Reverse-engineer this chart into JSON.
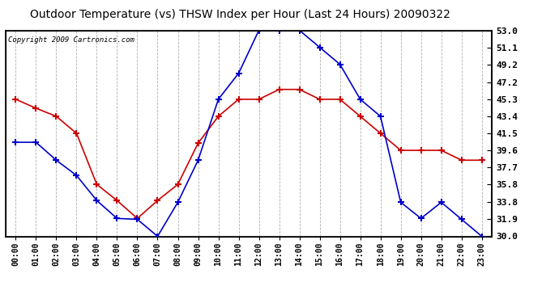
{
  "title": "Outdoor Temperature (vs) THSW Index per Hour (Last 24 Hours) 20090322",
  "copyright": "Copyright 2009 Cartronics.com",
  "hours": [
    "00:00",
    "01:00",
    "02:00",
    "03:00",
    "04:00",
    "05:00",
    "06:00",
    "07:00",
    "08:00",
    "09:00",
    "10:00",
    "11:00",
    "12:00",
    "13:00",
    "14:00",
    "15:00",
    "16:00",
    "17:00",
    "18:00",
    "19:00",
    "20:00",
    "21:00",
    "22:00",
    "23:00"
  ],
  "temp": [
    45.3,
    44.3,
    43.4,
    41.5,
    35.8,
    34.0,
    32.0,
    34.0,
    35.8,
    40.4,
    43.4,
    45.3,
    45.3,
    46.4,
    46.4,
    45.3,
    45.3,
    43.4,
    41.5,
    39.6,
    39.6,
    39.6,
    38.5,
    38.5
  ],
  "thsw": [
    40.5,
    40.5,
    38.5,
    36.8,
    34.0,
    32.0,
    31.9,
    30.0,
    33.8,
    38.5,
    45.3,
    48.2,
    53.0,
    53.0,
    53.0,
    51.1,
    49.2,
    45.3,
    43.4,
    33.8,
    32.0,
    33.8,
    31.9,
    30.0
  ],
  "temp_color": "#cc0000",
  "thsw_color": "#0000cc",
  "ylim_min": 30.0,
  "ylim_max": 53.0,
  "yticks": [
    30.0,
    31.9,
    33.8,
    35.8,
    37.7,
    39.6,
    41.5,
    43.4,
    45.3,
    47.2,
    49.2,
    51.1,
    53.0
  ],
  "bg_color": "#ffffff",
  "plot_bg_color": "#ffffff",
  "grid_color": "#b0b0b0",
  "title_fontsize": 10,
  "copyright_fontsize": 6.5
}
